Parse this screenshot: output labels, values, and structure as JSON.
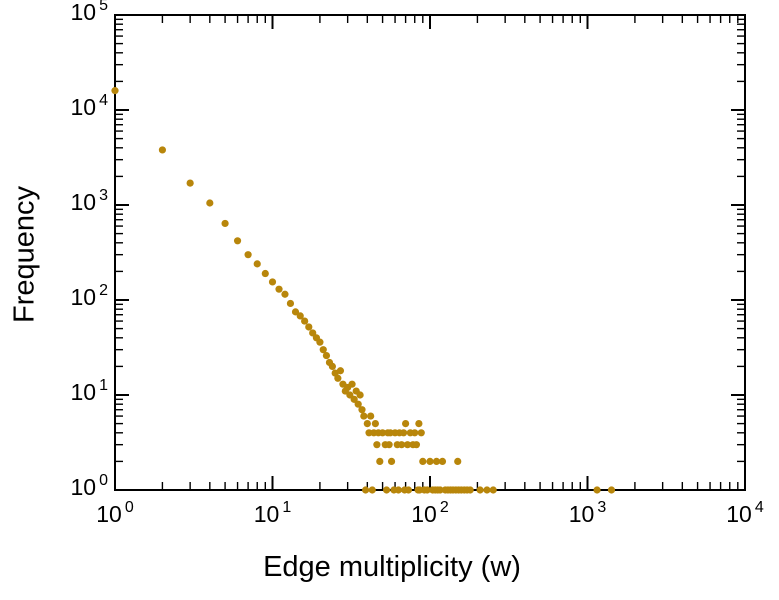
{
  "chart_data": {
    "type": "scatter",
    "title": "",
    "xlabel": "Edge multiplicity (w)",
    "ylabel": "Frequency",
    "x_scale": "log",
    "y_scale": "log",
    "xlim": [
      1,
      10000
    ],
    "ylim": [
      1,
      100000
    ],
    "tick_base": "10",
    "x_tick_exponents": [
      0,
      1,
      2,
      3,
      4
    ],
    "y_tick_exponents": [
      0,
      1,
      2,
      3,
      4,
      5
    ],
    "grid": false,
    "legend": false,
    "frame_color": "#000000",
    "background_color": "#ffffff",
    "marker": {
      "shape": "circle",
      "color": "#b8860b",
      "radius": 3.6
    },
    "points": [
      [
        1,
        16000
      ],
      [
        2,
        3800
      ],
      [
        3,
        1700
      ],
      [
        4,
        1050
      ],
      [
        5,
        640
      ],
      [
        6,
        420
      ],
      [
        7,
        300
      ],
      [
        8,
        240
      ],
      [
        9,
        190
      ],
      [
        10,
        155
      ],
      [
        11,
        130
      ],
      [
        12,
        115
      ],
      [
        13,
        92
      ],
      [
        14,
        75
      ],
      [
        15,
        68
      ],
      [
        16,
        60
      ],
      [
        17,
        52
      ],
      [
        18,
        45
      ],
      [
        19,
        40
      ],
      [
        20,
        36
      ],
      [
        21,
        30
      ],
      [
        22,
        26
      ],
      [
        23,
        22
      ],
      [
        24,
        20
      ],
      [
        25,
        17
      ],
      [
        26,
        15
      ],
      [
        27,
        18
      ],
      [
        28,
        13
      ],
      [
        29,
        11
      ],
      [
        30,
        12
      ],
      [
        31,
        10
      ],
      [
        32,
        13
      ],
      [
        33,
        9
      ],
      [
        34,
        11
      ],
      [
        35,
        8
      ],
      [
        36,
        10
      ],
      [
        37,
        7
      ],
      [
        38,
        6
      ],
      [
        39,
        1
      ],
      [
        40,
        5
      ],
      [
        41,
        4
      ],
      [
        42,
        6
      ],
      [
        43,
        1
      ],
      [
        44,
        4
      ],
      [
        45,
        5
      ],
      [
        46,
        3
      ],
      [
        47,
        4
      ],
      [
        48,
        2
      ],
      [
        50,
        4
      ],
      [
        52,
        3
      ],
      [
        53,
        1
      ],
      [
        54,
        4
      ],
      [
        55,
        3
      ],
      [
        56,
        4
      ],
      [
        57,
        2
      ],
      [
        59,
        1
      ],
      [
        60,
        4
      ],
      [
        62,
        3
      ],
      [
        63,
        1
      ],
      [
        64,
        4
      ],
      [
        66,
        3
      ],
      [
        68,
        4
      ],
      [
        69,
        1
      ],
      [
        70,
        5
      ],
      [
        72,
        3
      ],
      [
        73,
        1
      ],
      [
        75,
        4
      ],
      [
        78,
        3
      ],
      [
        80,
        4
      ],
      [
        82,
        3
      ],
      [
        84,
        1
      ],
      [
        85,
        5
      ],
      [
        86,
        1
      ],
      [
        88,
        4
      ],
      [
        90,
        2
      ],
      [
        92,
        1
      ],
      [
        96,
        1
      ],
      [
        100,
        2
      ],
      [
        104,
        1
      ],
      [
        108,
        1
      ],
      [
        110,
        2
      ],
      [
        112,
        1
      ],
      [
        116,
        1
      ],
      [
        120,
        2
      ],
      [
        125,
        1
      ],
      [
        130,
        1
      ],
      [
        135,
        1
      ],
      [
        140,
        1
      ],
      [
        146,
        1
      ],
      [
        150,
        2
      ],
      [
        152,
        1
      ],
      [
        158,
        1
      ],
      [
        165,
        1
      ],
      [
        172,
        1
      ],
      [
        180,
        1
      ],
      [
        208,
        1
      ],
      [
        230,
        1
      ],
      [
        252,
        1
      ],
      [
        1150,
        1
      ],
      [
        1420,
        1
      ]
    ]
  }
}
